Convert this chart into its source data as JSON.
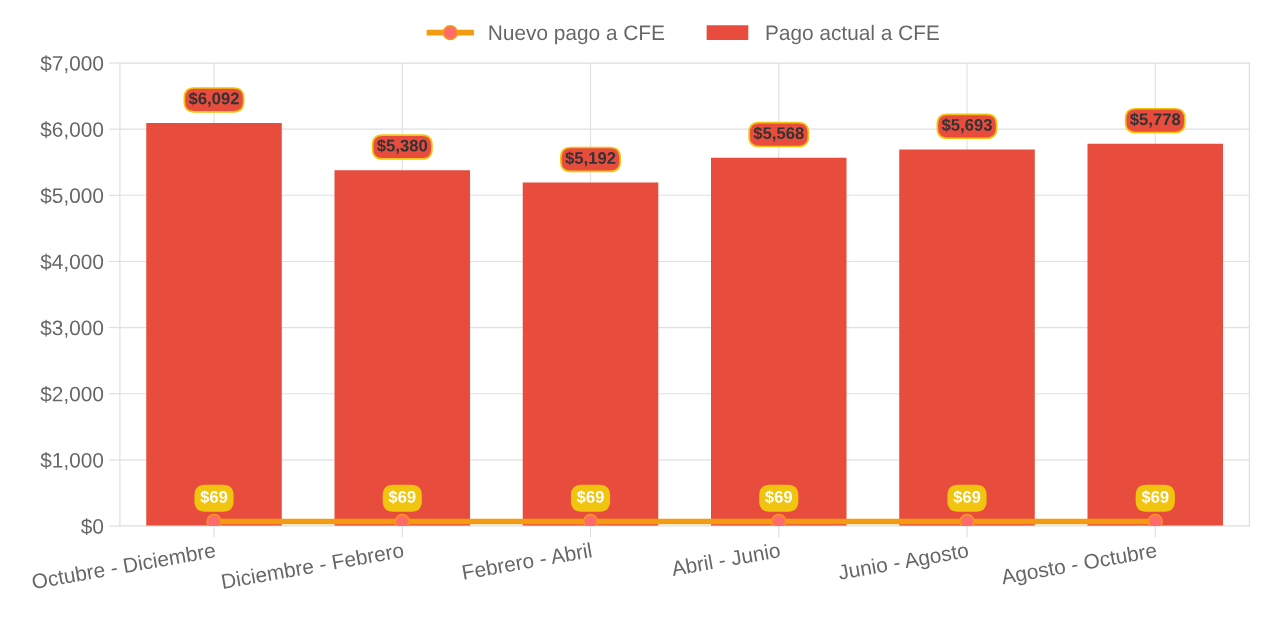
{
  "chart_data": {
    "type": "bar",
    "categories": [
      "Octubre - Diciembre",
      "Diciembre - Febrero",
      "Febrero - Abril",
      "Abril - Junio",
      "Junio - Agosto",
      "Agosto - Octubre"
    ],
    "series": [
      {
        "name": "Nuevo pago a CFE",
        "type": "line",
        "color": "#f39c12",
        "marker": "circle",
        "values": [
          69,
          69,
          69,
          69,
          69,
          69
        ],
        "value_labels": [
          "$69",
          "$69",
          "$69",
          "$69",
          "$69",
          "$69"
        ]
      },
      {
        "name": "Pago actual a CFE",
        "color": "#e74c3c",
        "values": [
          6092,
          5380,
          5192,
          5568,
          5693,
          5778
        ],
        "value_labels": [
          "$6,092",
          "$5,380",
          "$5,192",
          "$5,568",
          "$5,693",
          "$5,778"
        ]
      }
    ],
    "ylim": [
      0,
      7000
    ],
    "yticks": [
      {
        "value": 0,
        "label": "$0"
      },
      {
        "value": 1000,
        "label": "$1,000"
      },
      {
        "value": 2000,
        "label": "$2,000"
      },
      {
        "value": 3000,
        "label": "$3,000"
      },
      {
        "value": 4000,
        "label": "$4,000"
      },
      {
        "value": 5000,
        "label": "$5,000"
      },
      {
        "value": 6000,
        "label": "$6,000"
      },
      {
        "value": 7000,
        "label": "$7,000"
      }
    ],
    "grid": true,
    "legend": "top"
  }
}
